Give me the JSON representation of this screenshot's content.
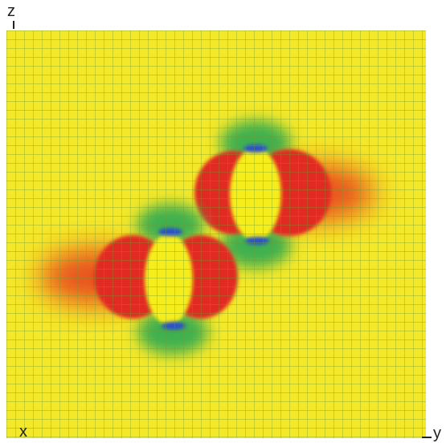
{
  "axes": {
    "z": "z",
    "x": "x",
    "y": "y"
  }
}
